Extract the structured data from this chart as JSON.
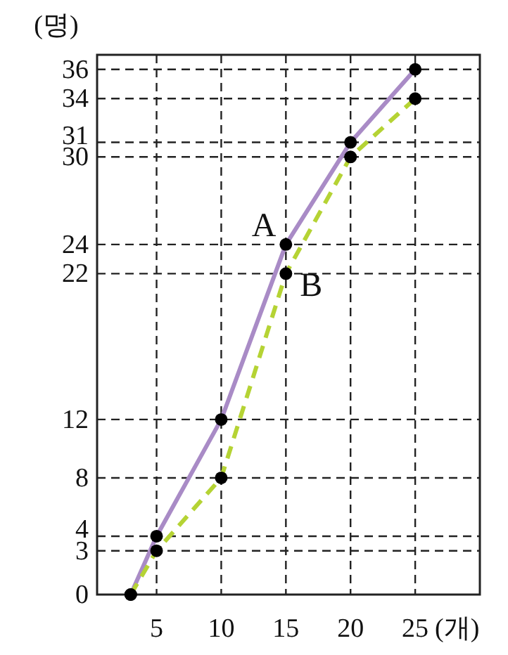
{
  "chart_data": {
    "type": "line",
    "xlabel": "(개)",
    "ylabel": "(명)",
    "xlim": [
      0.4,
      30
    ],
    "ylim": [
      0,
      37
    ],
    "xticks": [
      5,
      10,
      15,
      20,
      25
    ],
    "yticks": [
      0,
      3,
      4,
      8,
      12,
      22,
      24,
      30,
      31,
      34,
      36
    ],
    "grid": true,
    "marker": "circle",
    "series": [
      {
        "color": "#a98bc6",
        "line_style": "solid",
        "x": [
          3,
          5,
          10,
          15,
          20,
          25
        ],
        "values": [
          0,
          4,
          12,
          24,
          31,
          36
        ]
      },
      {
        "color": "#b5d334",
        "line_style": "dashed",
        "x": [
          3,
          5,
          10,
          15,
          20,
          25
        ],
        "values": [
          0,
          3,
          8,
          22,
          30,
          34
        ]
      }
    ],
    "annotations": [
      {
        "text": "A",
        "x": 15,
        "y": 24
      },
      {
        "text": "B",
        "x": 15,
        "y": 22
      }
    ]
  }
}
